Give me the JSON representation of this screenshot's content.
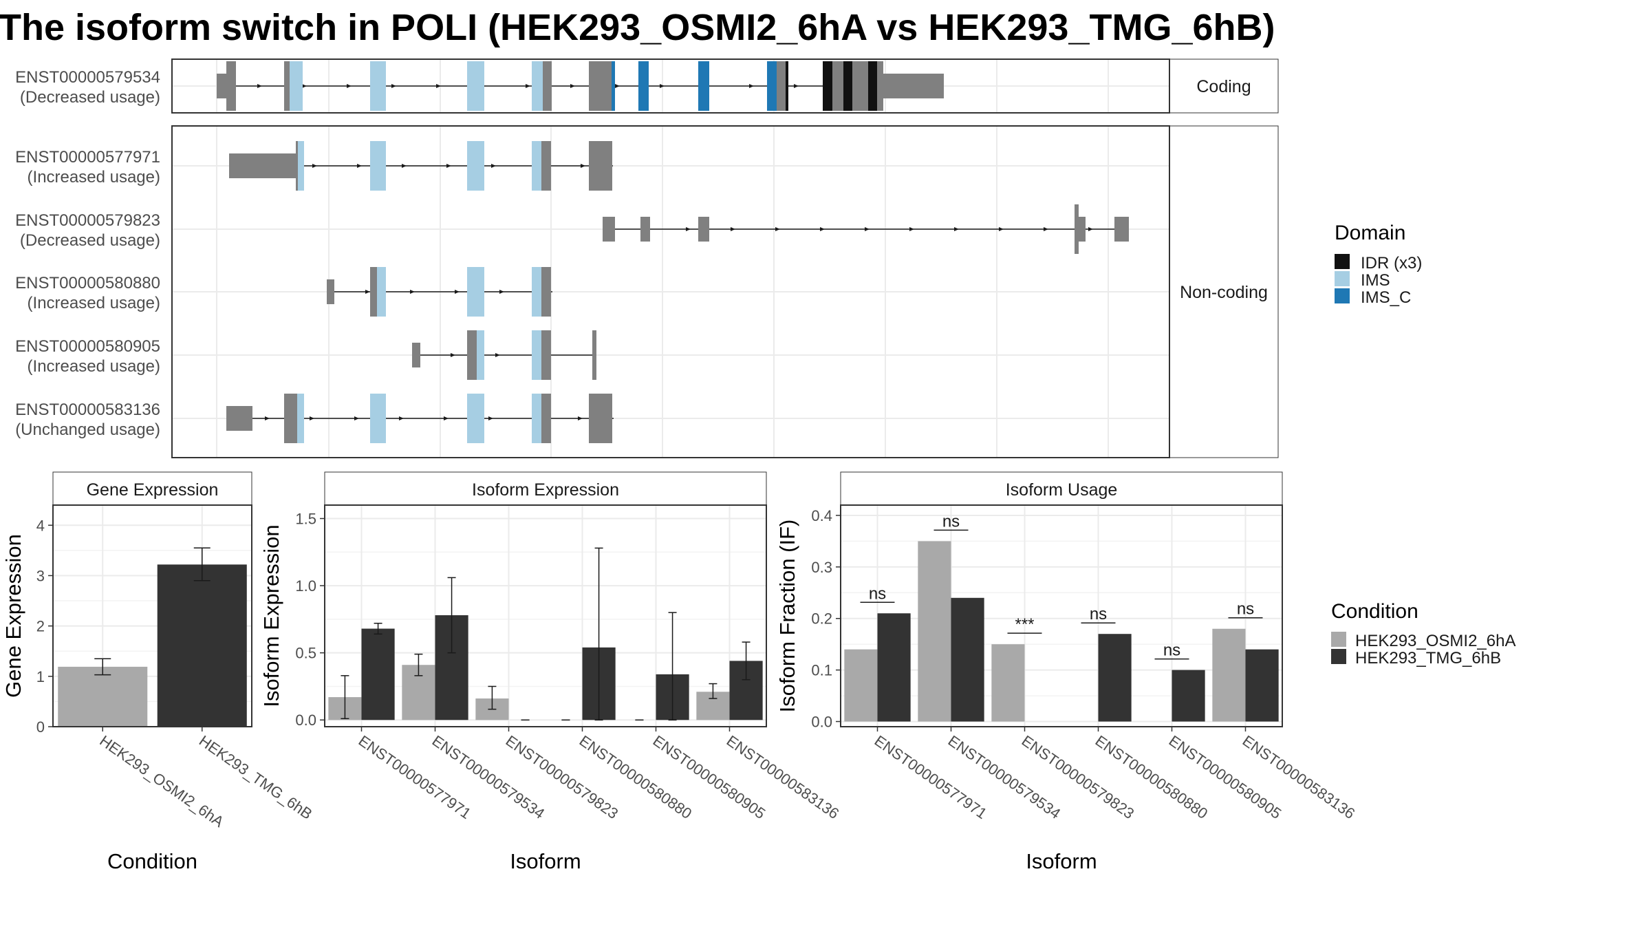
{
  "title": "The isoform switch in POLI (HEK293_OSMI2_6hA vs HEK293_TMG_6hB)",
  "colors": {
    "cond_a": "#a9a9a9",
    "cond_b": "#333333",
    "idr": "#111111",
    "ims": "#a6cee3",
    "ims_c": "#1f78b4",
    "exon": "#808080",
    "grid": "#ebebeb",
    "strip_bg": "#ffffff"
  },
  "structure": {
    "facets": [
      "Coding",
      "Non-coding"
    ],
    "transcripts": [
      {
        "id": "ENST00000579534",
        "usage": "(Decreased usage)",
        "facet": "Coding"
      },
      {
        "id": "ENST00000577971",
        "usage": "(Increased usage)",
        "facet": "Non-coding"
      },
      {
        "id": "ENST00000579823",
        "usage": "(Decreased usage)",
        "facet": "Non-coding"
      },
      {
        "id": "ENST00000580880",
        "usage": "(Increased usage)",
        "facet": "Non-coding"
      },
      {
        "id": "ENST00000580905",
        "usage": "(Increased usage)",
        "facet": "Non-coding"
      },
      {
        "id": "ENST00000583136",
        "usage": "(Unchanged usage)",
        "facet": "Non-coding"
      }
    ]
  },
  "legend_domain": {
    "title": "Domain",
    "items": [
      {
        "label": "IDR (x3)",
        "color": "#111111"
      },
      {
        "label": "IMS",
        "color": "#a6cee3"
      },
      {
        "label": "IMS_C",
        "color": "#1f78b4"
      }
    ]
  },
  "legend_condition": {
    "title": "Condition",
    "items": [
      {
        "label": "HEK293_OSMI2_6hA",
        "color": "#a9a9a9"
      },
      {
        "label": "HEK293_TMG_6hB",
        "color": "#333333"
      }
    ]
  },
  "chart_data": [
    {
      "type": "bar",
      "strip": "Gene Expression",
      "xlabel": "Condition",
      "ylabel": "Gene Expression",
      "ylim": [
        0,
        4.4
      ],
      "yticks": [
        0,
        1,
        2,
        3,
        4
      ],
      "categories": [
        "HEK293_OSMI2_6hA",
        "HEK293_TMG_6hB"
      ],
      "values": [
        1.19,
        3.22
      ],
      "errors": [
        [
          1.03,
          1.35
        ],
        [
          2.9,
          3.55
        ]
      ]
    },
    {
      "type": "bar",
      "strip": "Isoform Expression",
      "xlabel": "Isoform",
      "ylabel": "Isoform Expression",
      "ylim": [
        -0.05,
        1.6
      ],
      "yticks": [
        0.0,
        0.5,
        1.0,
        1.5
      ],
      "categories": [
        "ENST00000577971",
        "ENST00000579534",
        "ENST00000579823",
        "ENST00000580880",
        "ENST00000580905",
        "ENST00000583136"
      ],
      "series": [
        {
          "name": "HEK293_OSMI2_6hA",
          "values": [
            0.17,
            0.41,
            0.16,
            0.0,
            0.0,
            0.21
          ],
          "errors": [
            [
              0.01,
              0.33
            ],
            [
              0.33,
              0.49
            ],
            [
              0.08,
              0.25
            ],
            [
              0.0,
              0.0
            ],
            [
              0.0,
              0.0
            ],
            [
              0.16,
              0.27
            ]
          ]
        },
        {
          "name": "HEK293_TMG_6hB",
          "values": [
            0.68,
            0.78,
            0.0,
            0.54,
            0.34,
            0.44
          ],
          "errors": [
            [
              0.64,
              0.72
            ],
            [
              0.5,
              1.06
            ],
            [
              0.0,
              0.0
            ],
            [
              0.0,
              1.28
            ],
            [
              0.0,
              0.8
            ],
            [
              0.3,
              0.58
            ]
          ]
        }
      ]
    },
    {
      "type": "bar",
      "strip": "Isoform Usage",
      "xlabel": "Isoform",
      "ylabel": "Isoform Fraction (IF)",
      "ylim": [
        -0.01,
        0.42
      ],
      "yticks": [
        0.0,
        0.1,
        0.2,
        0.3,
        0.4
      ],
      "categories": [
        "ENST00000577971",
        "ENST00000579534",
        "ENST00000579823",
        "ENST00000580880",
        "ENST00000580905",
        "ENST00000583136"
      ],
      "series": [
        {
          "name": "HEK293_OSMI2_6hA",
          "values": [
            0.14,
            0.35,
            0.15,
            0.0,
            0.0,
            0.18
          ]
        },
        {
          "name": "HEK293_TMG_6hB",
          "values": [
            0.21,
            0.24,
            0.0,
            0.17,
            0.1,
            0.14
          ]
        }
      ],
      "significance": [
        "ns",
        "ns",
        "***",
        "ns",
        "ns",
        "ns"
      ]
    }
  ]
}
